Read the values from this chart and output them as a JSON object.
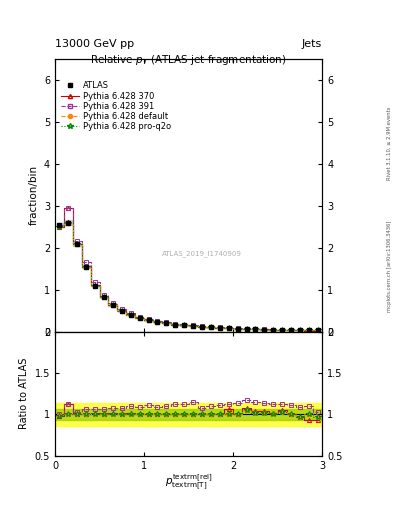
{
  "title": "Relative $p_{T}$ (ATLAS jet fragmentation)",
  "header_left": "13000 GeV pp",
  "header_right": "Jets",
  "ylabel_main": "fraction/bin",
  "ylabel_ratio": "Ratio to ATLAS",
  "watermark": "ATLAS_2019_I1740909",
  "rivet_text": "Rivet 3.1.10, ≥ 2.9M events",
  "mcplots_text": "mcplots.cern.ch [arXiv:1306.3436]",
  "xlim": [
    0,
    3
  ],
  "ylim_main": [
    0,
    6.5
  ],
  "ylim_ratio": [
    0.5,
    2.0
  ],
  "x_data": [
    0.05,
    0.15,
    0.25,
    0.35,
    0.45,
    0.55,
    0.65,
    0.75,
    0.85,
    0.95,
    1.05,
    1.15,
    1.25,
    1.35,
    1.45,
    1.55,
    1.65,
    1.75,
    1.85,
    1.95,
    2.05,
    2.15,
    2.25,
    2.35,
    2.45,
    2.55,
    2.65,
    2.75,
    2.85,
    2.95
  ],
  "atlas_y": [
    2.55,
    2.6,
    2.08,
    1.55,
    1.1,
    0.82,
    0.63,
    0.5,
    0.4,
    0.33,
    0.27,
    0.23,
    0.2,
    0.17,
    0.15,
    0.13,
    0.12,
    0.1,
    0.09,
    0.08,
    0.07,
    0.06,
    0.055,
    0.05,
    0.045,
    0.04,
    0.038,
    0.035,
    0.03,
    0.03
  ],
  "atlas_err": [
    0.05,
    0.05,
    0.04,
    0.03,
    0.02,
    0.015,
    0.01,
    0.01,
    0.008,
    0.007,
    0.006,
    0.005,
    0.004,
    0.004,
    0.003,
    0.003,
    0.003,
    0.002,
    0.002,
    0.002,
    0.002,
    0.002,
    0.002,
    0.002,
    0.002,
    0.002,
    0.002,
    0.002,
    0.002,
    0.002
  ],
  "py370_y": [
    2.5,
    2.95,
    2.1,
    1.57,
    1.12,
    0.83,
    0.64,
    0.5,
    0.41,
    0.33,
    0.27,
    0.23,
    0.2,
    0.17,
    0.15,
    0.13,
    0.12,
    0.1,
    0.09,
    0.085,
    0.07,
    0.065,
    0.057,
    0.052,
    0.046,
    0.042,
    0.038,
    0.034,
    0.028,
    0.028
  ],
  "py391_y": [
    2.55,
    2.95,
    2.15,
    1.65,
    1.18,
    0.88,
    0.68,
    0.54,
    0.44,
    0.36,
    0.3,
    0.25,
    0.22,
    0.19,
    0.17,
    0.15,
    0.13,
    0.11,
    0.1,
    0.09,
    0.08,
    0.07,
    0.063,
    0.057,
    0.051,
    0.045,
    0.042,
    0.038,
    0.033,
    0.031
  ],
  "pydef_y": [
    2.52,
    2.6,
    2.08,
    1.55,
    1.1,
    0.82,
    0.63,
    0.5,
    0.4,
    0.33,
    0.27,
    0.23,
    0.2,
    0.17,
    0.15,
    0.13,
    0.12,
    0.1,
    0.09,
    0.08,
    0.07,
    0.063,
    0.056,
    0.051,
    0.046,
    0.041,
    0.038,
    0.034,
    0.03,
    0.029
  ],
  "pyq2o_y": [
    2.5,
    2.6,
    2.08,
    1.55,
    1.1,
    0.82,
    0.63,
    0.5,
    0.4,
    0.33,
    0.27,
    0.23,
    0.2,
    0.17,
    0.15,
    0.13,
    0.12,
    0.1,
    0.09,
    0.08,
    0.07,
    0.063,
    0.056,
    0.051,
    0.045,
    0.041,
    0.038,
    0.034,
    0.03,
    0.029
  ],
  "py370_ratio": [
    0.98,
    1.13,
    1.01,
    1.01,
    1.02,
    1.01,
    1.02,
    1.0,
    1.02,
    1.0,
    1.0,
    1.0,
    1.0,
    1.0,
    1.0,
    1.0,
    1.0,
    1.0,
    1.0,
    1.06,
    1.0,
    1.08,
    1.04,
    1.04,
    1.02,
    1.05,
    1.0,
    0.97,
    0.93,
    0.93
  ],
  "py391_ratio": [
    1.0,
    1.13,
    1.03,
    1.06,
    1.07,
    1.07,
    1.08,
    1.08,
    1.1,
    1.09,
    1.11,
    1.09,
    1.1,
    1.12,
    1.13,
    1.15,
    1.08,
    1.1,
    1.11,
    1.13,
    1.14,
    1.17,
    1.15,
    1.14,
    1.13,
    1.13,
    1.11,
    1.09,
    1.1,
    1.03
  ],
  "pydef_ratio": [
    0.99,
    1.0,
    1.0,
    1.0,
    1.0,
    1.0,
    1.0,
    1.0,
    1.0,
    1.0,
    1.0,
    1.0,
    1.0,
    1.0,
    1.0,
    1.0,
    1.0,
    1.0,
    1.0,
    1.0,
    1.0,
    1.05,
    1.02,
    1.02,
    1.02,
    1.03,
    1.0,
    0.97,
    1.0,
    0.97
  ],
  "pyq2o_ratio": [
    0.98,
    1.0,
    1.0,
    1.0,
    1.0,
    1.0,
    1.0,
    1.0,
    1.0,
    1.0,
    1.0,
    1.0,
    1.0,
    1.0,
    1.0,
    1.0,
    1.0,
    1.0,
    1.0,
    1.0,
    1.0,
    1.05,
    1.02,
    1.02,
    1.0,
    1.03,
    1.0,
    0.97,
    1.0,
    0.97
  ],
  "atlas_color": "#000000",
  "py370_color": "#cc0000",
  "py391_color": "#993399",
  "pydef_color": "#ff8800",
  "pyq2o_color": "#008800",
  "band_green": "#99cc00",
  "band_yellow": "#ffff00",
  "atlas_band_gray": "#aaaaaa"
}
